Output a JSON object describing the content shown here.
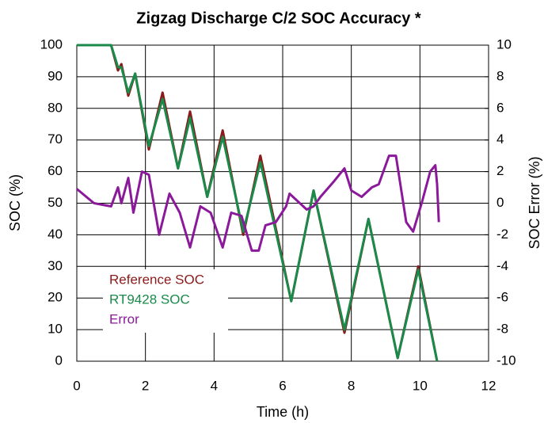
{
  "chart_data": {
    "type": "line",
    "title": "Zigzag Discharge C/2 SOC Accuracy *",
    "xlabel": "Time (h)",
    "ylabel": "SOC (%)",
    "y2label": "SOC Error (%)",
    "xlim": [
      0,
      12
    ],
    "xticks": [
      0,
      2,
      4,
      6,
      8,
      10,
      12
    ],
    "ylim": [
      0,
      100
    ],
    "yticks": [
      0,
      10,
      20,
      30,
      40,
      50,
      60,
      70,
      80,
      90,
      100
    ],
    "y2lim": [
      -10,
      10
    ],
    "y2ticks": [
      -10,
      -8,
      -6,
      -4,
      -2,
      0,
      2,
      4,
      6,
      8,
      10
    ],
    "grid": true,
    "legend": "lower left",
    "series": [
      {
        "name": "Reference  SOC",
        "color": "#8b1a1a",
        "x": [
          0,
          1.0,
          1.2,
          1.3,
          1.5,
          1.7,
          2.1,
          2.5,
          2.95,
          3.3,
          3.8,
          4.25,
          4.85,
          5.35,
          6.25,
          6.9,
          7.8,
          8.5,
          9.35,
          9.95,
          10.5
        ],
        "values": [
          100,
          100,
          92,
          94,
          84,
          91,
          67,
          85,
          61,
          79,
          52,
          73,
          40,
          65,
          19,
          54,
          9,
          45,
          1,
          30,
          0
        ]
      },
      {
        "name": "RT9428 SOC",
        "color": "#1a8a4a",
        "x": [
          0,
          1.0,
          1.2,
          1.3,
          1.5,
          1.7,
          2.1,
          2.5,
          2.95,
          3.3,
          3.8,
          4.25,
          4.85,
          5.35,
          6.25,
          6.9,
          7.8,
          8.5,
          9.35,
          9.95,
          10.5
        ],
        "values": [
          100,
          100,
          93,
          93,
          85,
          91,
          68,
          83,
          61,
          77,
          52,
          71,
          41,
          63,
          19,
          54,
          10,
          45,
          1,
          29,
          0
        ]
      },
      {
        "name": "Error",
        "color": "#8b1a9b",
        "axis": "y2",
        "x": [
          0,
          0.5,
          1.0,
          1.2,
          1.3,
          1.5,
          1.65,
          1.9,
          2.1,
          2.4,
          2.7,
          3.0,
          3.3,
          3.6,
          3.9,
          4.25,
          4.5,
          4.8,
          5.1,
          5.3,
          5.5,
          5.8,
          6.1,
          6.2,
          6.4,
          6.7,
          6.9,
          7.1,
          7.5,
          7.8,
          8.0,
          8.3,
          8.6,
          8.8,
          9.1,
          9.3,
          9.6,
          9.8,
          10.05,
          10.3,
          10.45,
          10.5,
          10.55
        ],
        "values": [
          0.9,
          0,
          -0.2,
          1,
          0,
          1.6,
          -0.6,
          2,
          1.8,
          -2,
          0.6,
          -0.6,
          -2.8,
          -0.2,
          -0.6,
          -2.8,
          -0.6,
          -0.8,
          -3,
          -3,
          -1.4,
          -1.2,
          -0.2,
          0.6,
          0.2,
          -0.4,
          -0.2,
          0.4,
          1.4,
          2.2,
          0.8,
          0.4,
          1,
          1.2,
          3,
          3,
          -1.2,
          -1.8,
          0,
          2,
          2.4,
          1.2,
          -1.2
        ]
      }
    ]
  }
}
